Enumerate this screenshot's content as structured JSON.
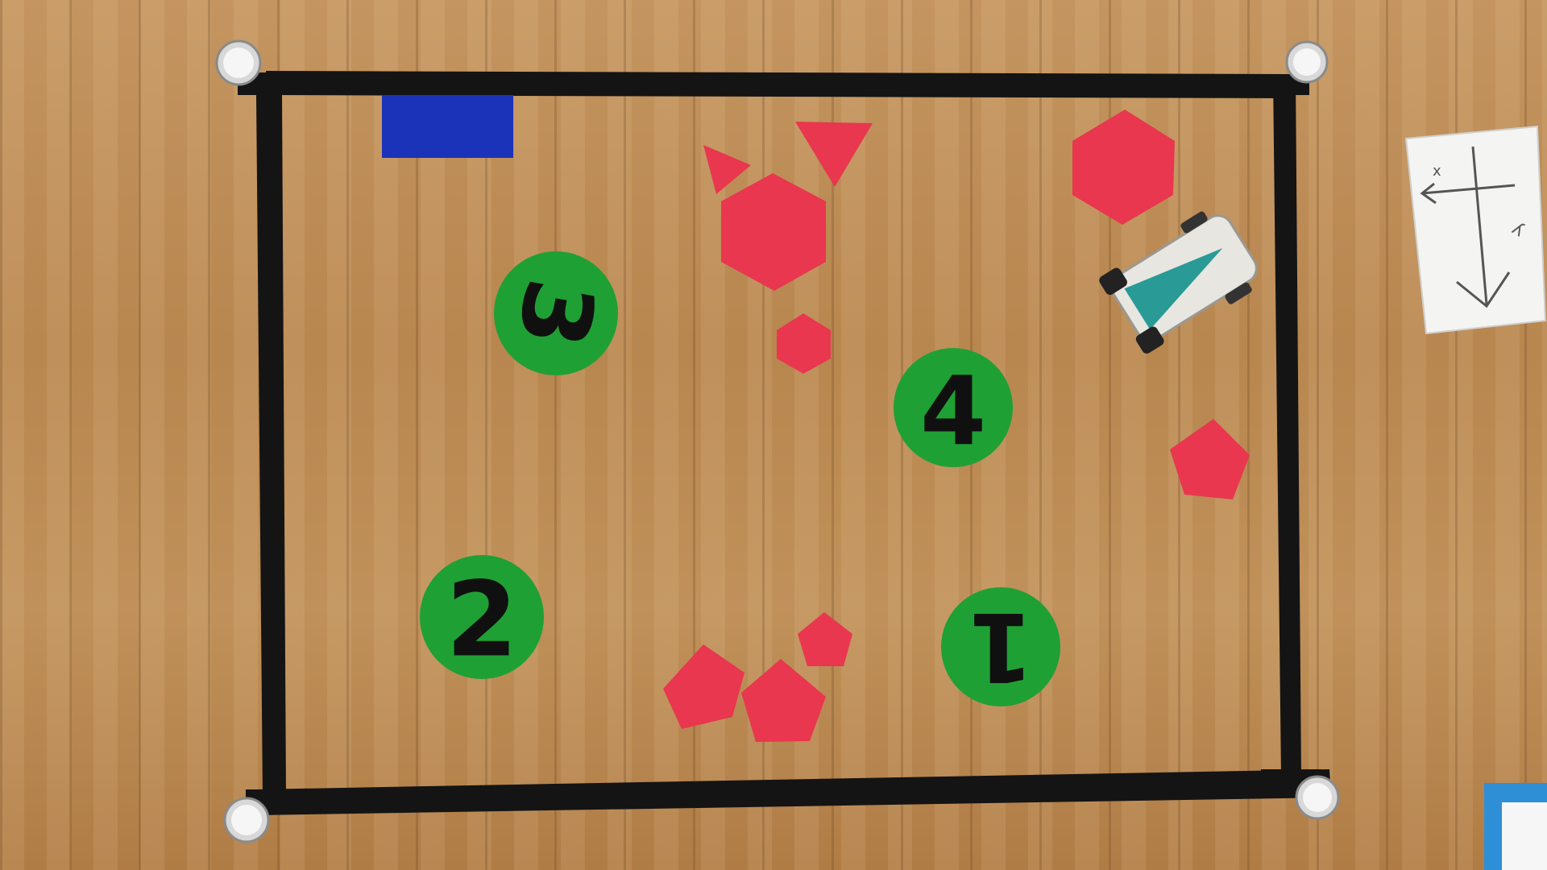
{
  "scene": {
    "surface": "wooden floor",
    "arena_border_color": "#141414",
    "floor_color": "#b98a52"
  },
  "colors": {
    "blue_marker": "#1b33b8",
    "red_shape": "#e8374e",
    "green_disc": "#1fa034",
    "digit": "#101010",
    "robot_body": "#e8e6e0",
    "robot_panel": "#2a9a96",
    "corner_marker": "#f2f2f2",
    "paper": "#f4f4f2",
    "paper_ink": "#555555"
  },
  "markers": {
    "discs": [
      {
        "label": "3",
        "rotation_deg": 100
      },
      {
        "label": "4",
        "rotation_deg": 0
      },
      {
        "label": "2",
        "rotation_deg": 0
      },
      {
        "label": "1",
        "rotation_deg": 180
      }
    ]
  },
  "paper_sign": {
    "labels": [
      "x",
      "y"
    ]
  },
  "icons": {
    "corner": "circle-marker-icon",
    "robot": "robot-icon"
  }
}
